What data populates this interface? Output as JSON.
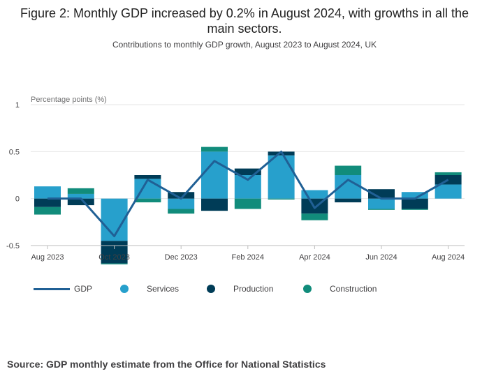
{
  "title": "Figure 2: Monthly GDP increased by 0.2% in August 2024, with growths in all the main sectors.",
  "subtitle": "Contributions to monthly GDP growth, August 2023 to August 2024, UK",
  "source": "Source: GDP monthly estimate from the Office for National Statistics",
  "colors": {
    "services": "#27a0cc",
    "production": "#003c57",
    "construction": "#118c7b",
    "gdp": "#206095",
    "grid": "#e5e5e5",
    "axis": "#bdbdbd"
  },
  "chart_data": {
    "type": "bar",
    "stacked": true,
    "ylabel": "Percentage points (%)",
    "ylim": [
      -0.5,
      1
    ],
    "yticks": [
      1,
      0.5,
      0,
      -0.5
    ],
    "ytick_labels": [
      "1",
      "0.5",
      "0",
      "-0.5"
    ],
    "categories": [
      "Aug 2023",
      "Sep 2023",
      "Oct 2023",
      "Nov 2023",
      "Dec 2023",
      "Jan 2024",
      "Feb 2024",
      "Mar 2024",
      "Apr 2024",
      "May 2024",
      "Jun 2024",
      "Jul 2024",
      "Aug 2024"
    ],
    "xtick_labels": [
      "Aug 2023",
      "Oct 2023",
      "Dec 2023",
      "Feb 2024",
      "Apr 2024",
      "Jun 2024",
      "Aug 2024"
    ],
    "series": [
      {
        "name": "Services",
        "type": "bar",
        "values": [
          0.13,
          0.05,
          -0.45,
          0.21,
          -0.11,
          0.5,
          0.25,
          0.46,
          0.09,
          0.25,
          -0.11,
          0.07,
          0.15
        ]
      },
      {
        "name": "Production",
        "type": "bar",
        "values": [
          -0.09,
          -0.07,
          -0.24,
          0.04,
          0.07,
          -0.13,
          0.07,
          0.04,
          -0.16,
          -0.04,
          0.1,
          -0.11,
          0.1
        ]
      },
      {
        "name": "Construction",
        "type": "bar",
        "values": [
          -0.08,
          0.06,
          -0.01,
          -0.04,
          -0.05,
          0.05,
          -0.11,
          -0.01,
          -0.07,
          0.1,
          -0.01,
          -0.01,
          0.03
        ]
      },
      {
        "name": "GDP",
        "type": "line",
        "values": [
          0.0,
          0.0,
          -0.4,
          0.2,
          0.0,
          0.4,
          0.2,
          0.5,
          -0.1,
          0.2,
          0.0,
          0.0,
          0.2
        ]
      }
    ],
    "legend": [
      "GDP",
      "Services",
      "Production",
      "Construction"
    ],
    "legend_position": "bottom"
  }
}
